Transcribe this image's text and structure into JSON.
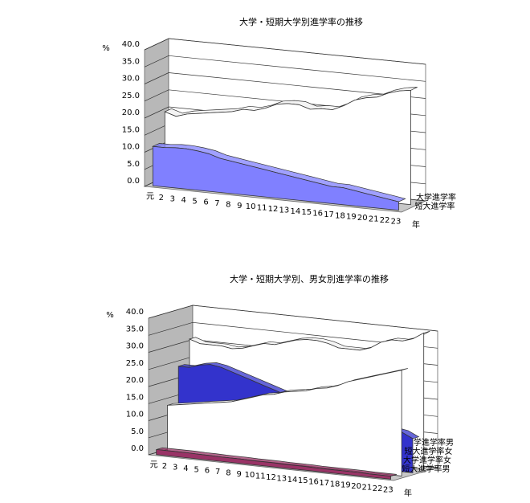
{
  "chart_data": [
    {
      "type": "area3d",
      "title": "大学・短期大学別進学率の推移",
      "x_label": "年",
      "y_label": "%",
      "categories": [
        "元",
        "2",
        "3",
        "4",
        "5",
        "6",
        "7",
        "8",
        "9",
        "10",
        "11",
        "12",
        "13",
        "14",
        "15",
        "16",
        "17",
        "18",
        "19",
        "20",
        "21",
        "22",
        "23"
      ],
      "ylim": [
        0,
        40
      ],
      "yticks": [
        {
          "value": 0,
          "label": "0.0"
        },
        {
          "value": 5,
          "label": "5.0"
        },
        {
          "value": 10,
          "label": "10.0"
        },
        {
          "value": 15,
          "label": "15.0"
        },
        {
          "value": 20,
          "label": "20.0"
        },
        {
          "value": 25,
          "label": "25.0"
        },
        {
          "value": 30,
          "label": "30.0"
        },
        {
          "value": 35,
          "label": "35.0"
        },
        {
          "value": 40,
          "label": "40.0"
        }
      ],
      "series": [
        {
          "name": "大学進学率",
          "color": "#ffffff",
          "values": [
            20,
            19,
            20,
            20.5,
            21,
            21.5,
            22,
            23,
            23,
            24,
            25.5,
            26,
            26,
            25,
            25.5,
            25.5,
            27,
            29,
            30,
            30.5,
            32,
            33,
            33.5
          ]
        },
        {
          "name": "短大進学率",
          "color": "#8080ff",
          "values": [
            11.5,
            11.5,
            11.8,
            11.8,
            11.5,
            11,
            10,
            9.5,
            9,
            8.5,
            8,
            7.5,
            7,
            6.5,
            6,
            5.5,
            5,
            5,
            4.5,
            4,
            3.5,
            3,
            2.5
          ]
        }
      ]
    },
    {
      "type": "area3d",
      "title": "大学・短期大学別、男女別進学率の推移",
      "x_label": "年",
      "y_label": "%",
      "categories": [
        "元",
        "2",
        "3",
        "4",
        "5",
        "6",
        "7",
        "8",
        "9",
        "10",
        "11",
        "12",
        "13",
        "14",
        "15",
        "16",
        "17",
        "18",
        "19",
        "20",
        "21",
        "22",
        "23"
      ],
      "ylim": [
        0,
        40
      ],
      "yticks": [
        {
          "value": 0,
          "label": "0.0"
        },
        {
          "value": 5,
          "label": "5.0"
        },
        {
          "value": 10,
          "label": "10.0"
        },
        {
          "value": 15,
          "label": "15.0"
        },
        {
          "value": 20,
          "label": "20.0"
        },
        {
          "value": 25,
          "label": "25.0"
        },
        {
          "value": 30,
          "label": "30.0"
        },
        {
          "value": 35,
          "label": "35.0"
        },
        {
          "value": 40,
          "label": "40.0"
        }
      ],
      "series": [
        {
          "name": "大学進学率男",
          "color": "#ffffff",
          "values": [
            31,
            30,
            30,
            30,
            29.5,
            30,
            31,
            32,
            32,
            33,
            34,
            34.5,
            34.5,
            34,
            33,
            33,
            33,
            34,
            36,
            37,
            37,
            38,
            40
          ]
        },
        {
          "name": "短大進学率女",
          "color": "#3333cc",
          "values": [
            24,
            24,
            25,
            25.5,
            25,
            24,
            23,
            22,
            21,
            20,
            19,
            18,
            17,
            16,
            15.5,
            15,
            14,
            13.5,
            13,
            12.5,
            12,
            11.5,
            10
          ]
        },
        {
          "name": "大学進学率女",
          "color": "#ffffff",
          "values": [
            13.5,
            14,
            14.5,
            15,
            15.5,
            16,
            16.5,
            17.5,
            18.5,
            19.5,
            20,
            21,
            21.5,
            22,
            23,
            23.5,
            24.5,
            26,
            27,
            28,
            29,
            30,
            31
          ]
        },
        {
          "name": "短大進学率男",
          "color": "#993366",
          "values": [
            1.5,
            1.5,
            1.5,
            1.5,
            1.4,
            1.4,
            1.3,
            1.3,
            1.3,
            1.2,
            1.2,
            1.2,
            1.1,
            1.1,
            1.1,
            1,
            1,
            1,
            1,
            1,
            0.9,
            0.9,
            0.9
          ]
        }
      ]
    }
  ]
}
